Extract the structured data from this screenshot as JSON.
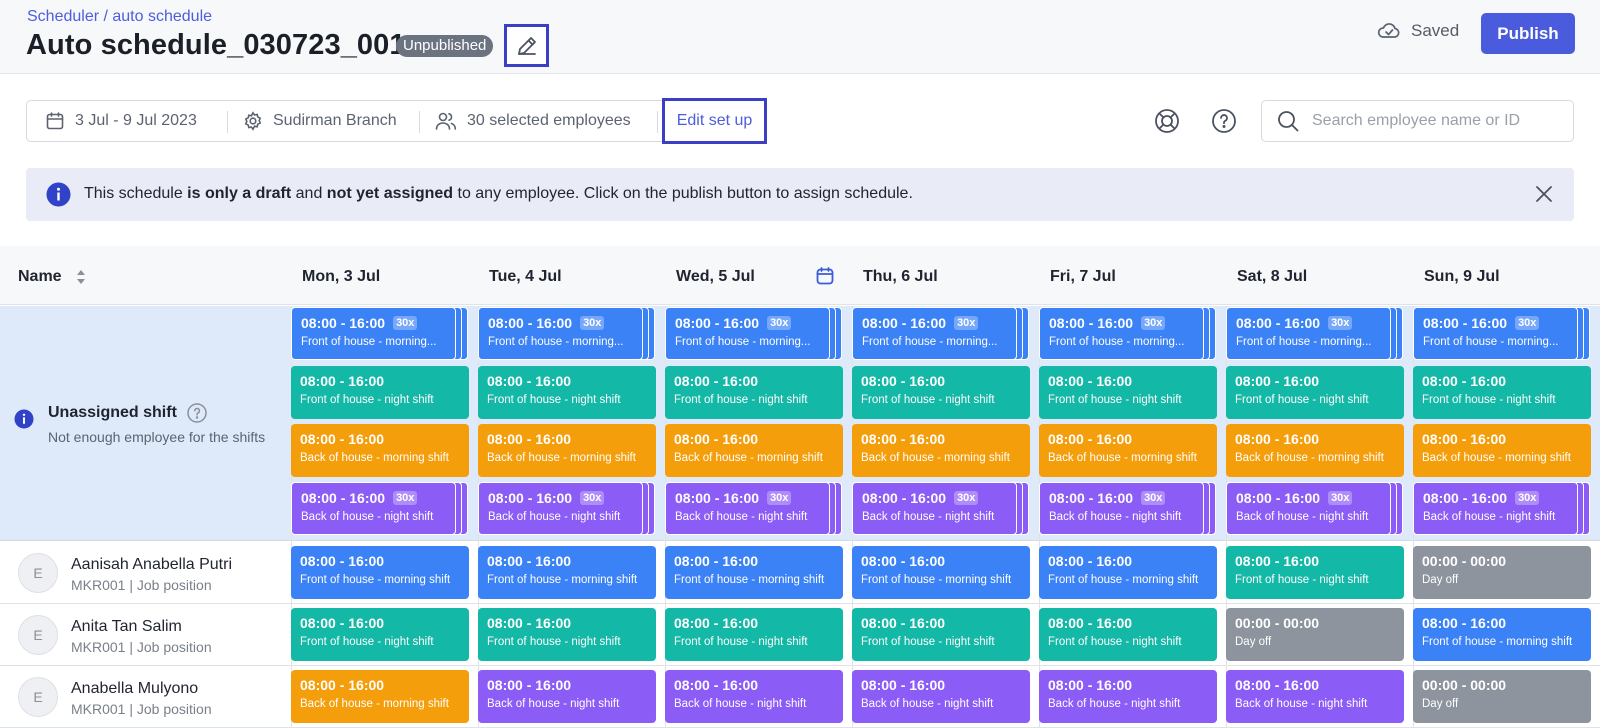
{
  "header": {
    "breadcrumb": "Scheduler / auto schedule",
    "title": "Auto schedule_030723_001",
    "status_badge": "Unpublished",
    "saved_label": "Saved",
    "publish_label": "Publish"
  },
  "filters": {
    "date_range": "3 Jul - 9 Jul 2023",
    "branch": "Sudirman Branch",
    "employees": "30 selected employees",
    "edit_setup": "Edit set up"
  },
  "search": {
    "placeholder": "Search employee name or ID"
  },
  "banner": {
    "part1": "This schedule ",
    "bold1": "is only a draft",
    "part2": " and ",
    "bold2": "not yet assigned",
    "part3": " to any employee. Click on the publish button to assign schedule."
  },
  "table": {
    "name_header": "Name",
    "days": [
      "Mon, 3 Jul",
      "Tue, 4 Jul",
      "Wed, 5 Jul",
      "Thu, 6 Jul",
      "Fri, 7 Jul",
      "Sat, 8 Jul",
      "Sun, 9 Jul"
    ]
  },
  "unassigned": {
    "title": "Unassigned shift",
    "subtitle": "Not enough employee for the shifts",
    "shifts": [
      {
        "time": "08:00 - 16:00",
        "count": "30x",
        "label": "Front of house - morning...",
        "color": "#3b82f6",
        "stacked": true
      },
      {
        "time": "08:00 - 16:00",
        "count": "",
        "label": "Front of house - night shift",
        "color": "#14b8a6",
        "stacked": false
      },
      {
        "time": "08:00 - 16:00",
        "count": "",
        "label": "Back of house - morning shift",
        "color": "#f59e0b",
        "stacked": false
      },
      {
        "time": "08:00 - 16:00",
        "count": "30x",
        "label": "Back of house - night shift",
        "color": "#8b5cf6",
        "stacked": true
      }
    ]
  },
  "employees": [
    {
      "initial": "E",
      "name": "Aanisah Anabella Putri",
      "sub": "MKR001 | Job position",
      "shifts": [
        {
          "time": "08:00 - 16:00",
          "label": "Front of house - morning shift",
          "color": "#3b82f6"
        },
        {
          "time": "08:00 - 16:00",
          "label": "Front of house - morning shift",
          "color": "#3b82f6"
        },
        {
          "time": "08:00 - 16:00",
          "label": "Front of house - morning shift",
          "color": "#3b82f6"
        },
        {
          "time": "08:00 - 16:00",
          "label": "Front of house - morning shift",
          "color": "#3b82f6"
        },
        {
          "time": "08:00 - 16:00",
          "label": "Front of house - morning shift",
          "color": "#3b82f6"
        },
        {
          "time": "08:00 - 16:00",
          "label": "Front of house - night shift",
          "color": "#14b8a6"
        },
        {
          "time": "00:00 - 00:00",
          "label": "Day off",
          "color": "#8d949e"
        }
      ]
    },
    {
      "initial": "E",
      "name": "Anita Tan Salim",
      "sub": "MKR001 | Job position",
      "shifts": [
        {
          "time": "08:00 - 16:00",
          "label": "Front of house - night shift",
          "color": "#14b8a6"
        },
        {
          "time": "08:00 - 16:00",
          "label": "Front of house - night shift",
          "color": "#14b8a6"
        },
        {
          "time": "08:00 - 16:00",
          "label": "Front of house - night shift",
          "color": "#14b8a6"
        },
        {
          "time": "08:00 - 16:00",
          "label": "Front of house - night shift",
          "color": "#14b8a6"
        },
        {
          "time": "08:00 - 16:00",
          "label": "Front of house - night shift",
          "color": "#14b8a6"
        },
        {
          "time": "00:00 - 00:00",
          "label": "Day off",
          "color": "#8d949e"
        },
        {
          "time": "08:00 - 16:00",
          "label": "Front of house - morning shift",
          "color": "#3b82f6"
        }
      ]
    },
    {
      "initial": "E",
      "name": "Anabella Mulyono",
      "sub": "MKR001 | Job position",
      "shifts": [
        {
          "time": "08:00 - 16:00",
          "label": "Back of house - morning shift",
          "color": "#f59e0b"
        },
        {
          "time": "08:00 - 16:00",
          "label": "Back of house - night shift",
          "color": "#8b5cf6"
        },
        {
          "time": "08:00 - 16:00",
          "label": "Back of house - night shift",
          "color": "#8b5cf6"
        },
        {
          "time": "08:00 - 16:00",
          "label": "Back of house - night shift",
          "color": "#8b5cf6"
        },
        {
          "time": "08:00 - 16:00",
          "label": "Back of house - night shift",
          "color": "#8b5cf6"
        },
        {
          "time": "08:00 - 16:00",
          "label": "Back of house - night shift",
          "color": "#8b5cf6"
        },
        {
          "time": "00:00 - 00:00",
          "label": "Day off",
          "color": "#8d949e"
        }
      ]
    }
  ]
}
